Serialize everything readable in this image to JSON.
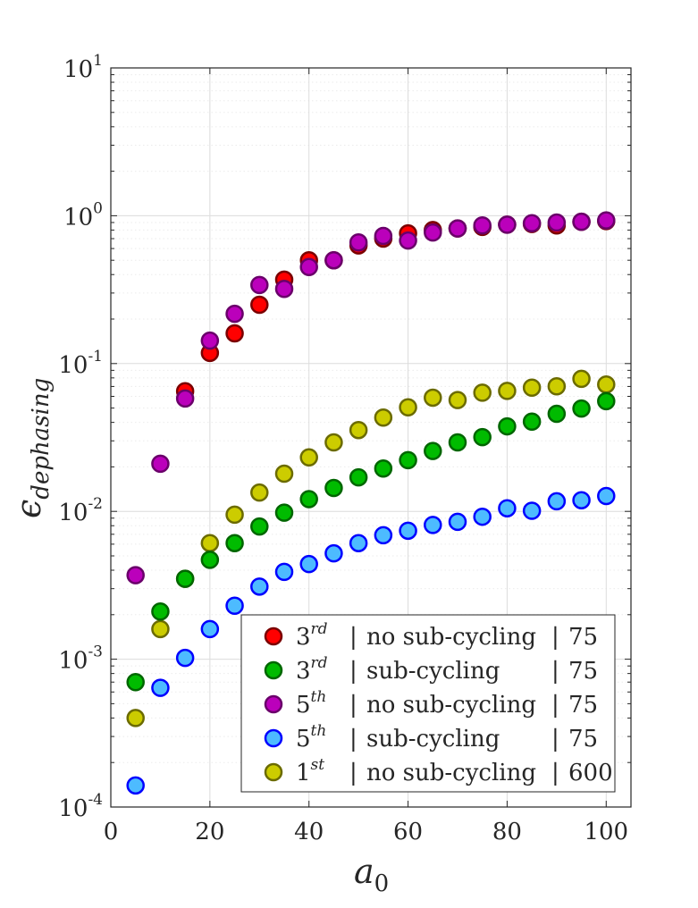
{
  "chart_data": {
    "type": "scatter",
    "title": "",
    "xlabel": "a",
    "xlabel_subscript": "0",
    "ylabel": "ϵ",
    "ylabel_subscript": "dephasing",
    "xlim": [
      0,
      105
    ],
    "ylim": [
      0.0001,
      10
    ],
    "yscale": "log",
    "grid": true,
    "legend_position": "bottom-right",
    "x_ticks": [
      0,
      20,
      40,
      60,
      80,
      100
    ],
    "x_tick_labels": [
      "0",
      "20",
      "40",
      "60",
      "80",
      "100"
    ],
    "y_ticks": [
      0.0001,
      0.001,
      0.01,
      0.1,
      1,
      10
    ],
    "y_tick_labels": [
      {
        "base": "10",
        "exp": "-4"
      },
      {
        "base": "10",
        "exp": "-3"
      },
      {
        "base": "10",
        "exp": "-2"
      },
      {
        "base": "10",
        "exp": "-1"
      },
      {
        "base": "10",
        "exp": "0"
      },
      {
        "base": "10",
        "exp": "1"
      }
    ],
    "x": [
      5,
      10,
      15,
      20,
      25,
      30,
      35,
      40,
      45,
      50,
      55,
      60,
      65,
      70,
      75,
      80,
      85,
      90,
      95,
      100
    ],
    "series": [
      {
        "name": "3rd no sub-cycling 75",
        "order": "3",
        "order_sup": "rd",
        "method": "no sub-cycling",
        "particles": "75",
        "fill": "#ff0000",
        "stroke": "#7a0000",
        "x": [
          15,
          20,
          25,
          30,
          35,
          40,
          45,
          50,
          55,
          60,
          65,
          70,
          75,
          80,
          85,
          90,
          95,
          100
        ],
        "values": [
          0.065,
          0.118,
          0.16,
          0.25,
          0.37,
          0.5,
          0.5,
          0.63,
          0.7,
          0.76,
          0.8,
          0.82,
          0.84,
          0.87,
          0.88,
          0.86,
          0.91,
          0.92
        ]
      },
      {
        "name": "3rd sub-cycling 75",
        "order": "3",
        "order_sup": "rd",
        "method": "sub-cycling",
        "particles": "75",
        "fill": "#00bb00",
        "stroke": "#006600",
        "x": [
          5,
          10,
          15,
          20,
          25,
          30,
          35,
          40,
          45,
          50,
          55,
          60,
          65,
          70,
          75,
          80,
          85,
          90,
          95,
          100
        ],
        "values": [
          0.0007,
          0.0021,
          0.0035,
          0.0047,
          0.0061,
          0.0079,
          0.0098,
          0.0121,
          0.0144,
          0.017,
          0.0195,
          0.0222,
          0.0256,
          0.0293,
          0.0318,
          0.0376,
          0.0405,
          0.0457,
          0.0496,
          0.0557
        ]
      },
      {
        "name": "5th no sub-cycling 75",
        "order": "5",
        "order_sup": "th",
        "method": "no sub-cycling",
        "particles": "75",
        "fill": "#bb00bb",
        "stroke": "#6a006a",
        "x": [
          5,
          10,
          15,
          20,
          25,
          30,
          35,
          40,
          45,
          50,
          55,
          60,
          65,
          70,
          75,
          80,
          85,
          90,
          95,
          100
        ],
        "values": [
          0.0037,
          0.021,
          0.058,
          0.143,
          0.217,
          0.34,
          0.32,
          0.45,
          0.5,
          0.66,
          0.73,
          0.68,
          0.77,
          0.82,
          0.86,
          0.87,
          0.89,
          0.9,
          0.91,
          0.93
        ]
      },
      {
        "name": "5th sub-cycling 75",
        "order": "5",
        "order_sup": "th",
        "method": "sub-cycling",
        "particles": "75",
        "fill": "#4dbbff",
        "stroke": "#0000ff",
        "x": [
          5,
          10,
          15,
          20,
          25,
          30,
          35,
          40,
          45,
          50,
          55,
          60,
          65,
          70,
          75,
          80,
          85,
          90,
          95,
          100
        ],
        "values": [
          0.00014,
          0.00064,
          0.00102,
          0.0016,
          0.0023,
          0.0031,
          0.0039,
          0.0044,
          0.0052,
          0.0061,
          0.0069,
          0.0074,
          0.0081,
          0.0085,
          0.0092,
          0.0105,
          0.0101,
          0.0117,
          0.0119,
          0.0127
        ]
      },
      {
        "name": "1st no sub-cycling 600",
        "order": "1",
        "order_sup": "st",
        "method": "no sub-cycling",
        "particles": "600",
        "fill": "#cccc00",
        "stroke": "#6b6b00",
        "x": [
          5,
          10,
          15,
          20,
          25,
          30,
          35,
          40,
          45,
          50,
          55,
          60,
          65,
          70,
          75,
          80,
          85,
          90,
          95,
          100
        ],
        "values": [
          0.0004,
          0.0016,
          0.0035,
          0.0061,
          0.0095,
          0.0134,
          0.018,
          0.0232,
          0.0293,
          0.0355,
          0.0431,
          0.0506,
          0.0588,
          0.0566,
          0.0635,
          0.0653,
          0.0687,
          0.0702,
          0.0788,
          0.0722
        ]
      }
    ]
  }
}
